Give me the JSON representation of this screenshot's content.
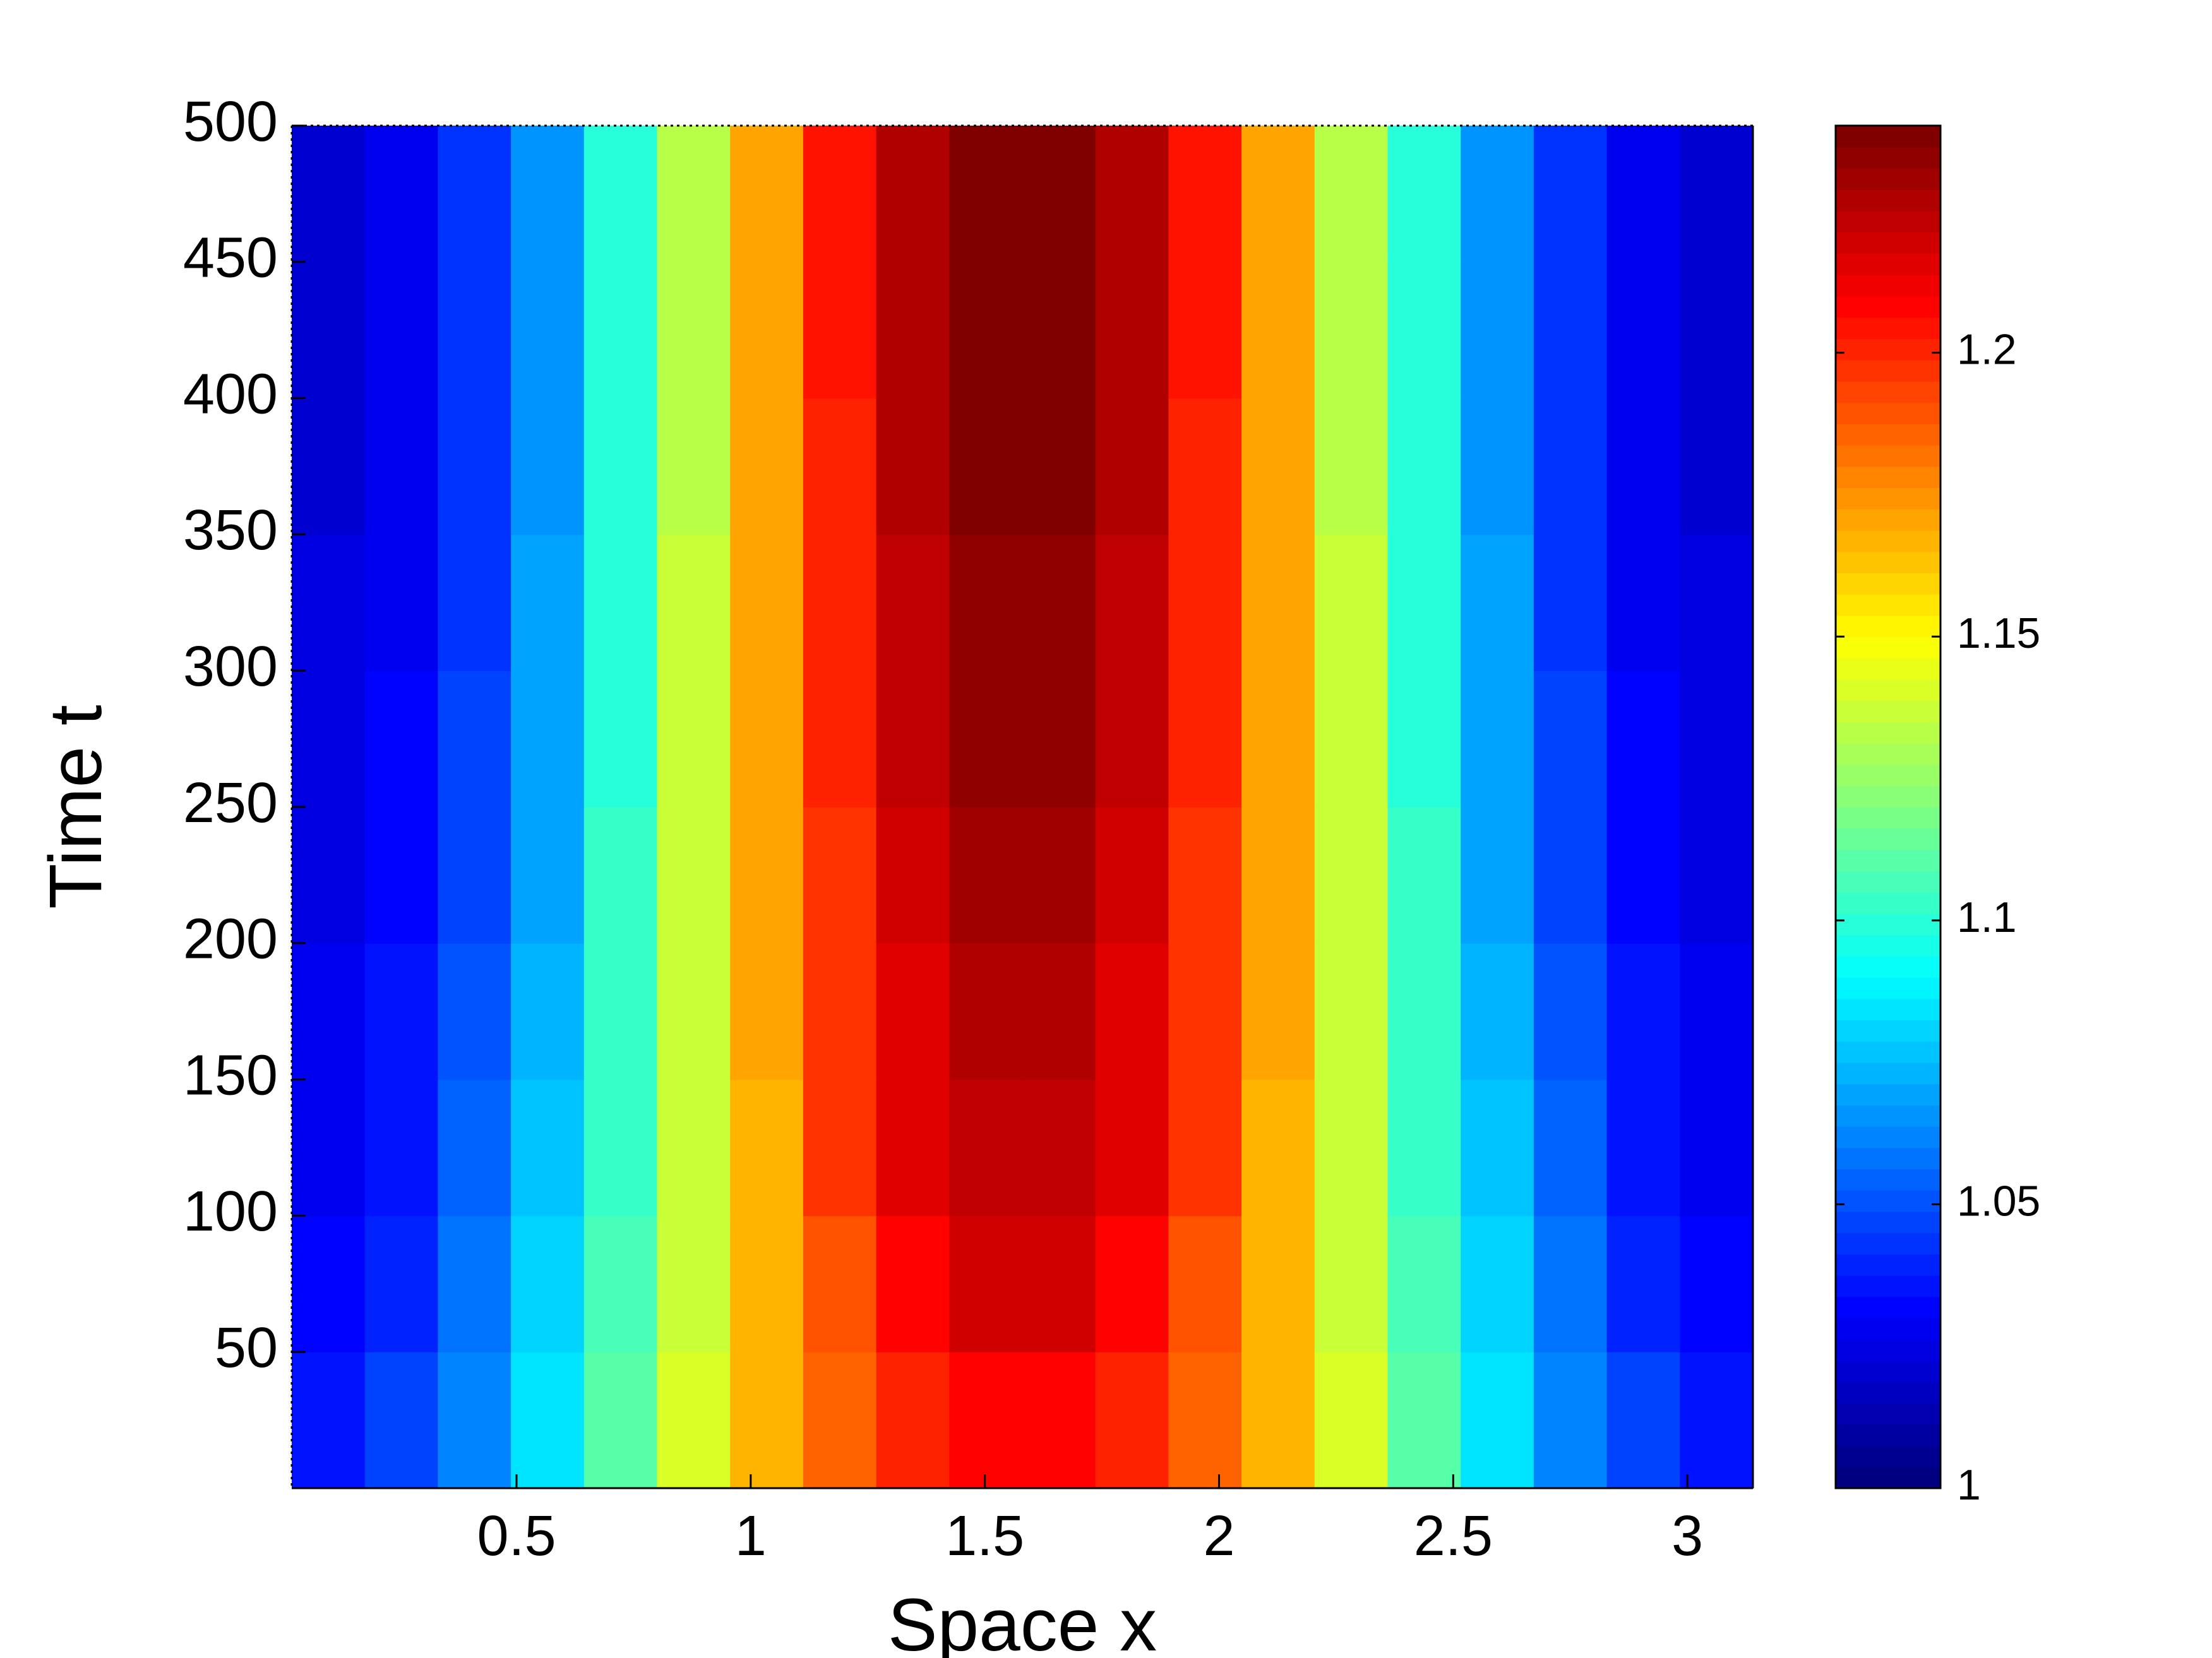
{
  "chart_data": {
    "type": "heatmap",
    "xlabel": "Space x",
    "ylabel": "Time t",
    "colormap": "jet",
    "xlim": [
      0.02,
      3.14
    ],
    "ylim": [
      0,
      500
    ],
    "clim": [
      1,
      1.24
    ],
    "xticks": [
      0.5,
      1,
      1.5,
      2,
      2.5,
      3
    ],
    "yticks": [
      50,
      100,
      150,
      200,
      250,
      300,
      350,
      400,
      450,
      500
    ],
    "cticks": [
      1,
      1.05,
      1.1,
      1.15,
      1.2
    ],
    "x": [
      0.098,
      0.254,
      0.41,
      0.566,
      0.722,
      0.878,
      1.034,
      1.19,
      1.346,
      1.502,
      1.658,
      1.814,
      1.97,
      2.126,
      2.282,
      2.438,
      2.594,
      2.75,
      2.906,
      3.062
    ],
    "y": [
      25,
      75,
      125,
      175,
      225,
      275,
      325,
      375,
      425,
      475
    ],
    "z": [
      [
        1.037,
        1.046,
        1.063,
        1.085,
        1.111,
        1.139,
        1.165,
        1.186,
        1.201,
        1.209,
        1.209,
        1.201,
        1.186,
        1.165,
        1.139,
        1.111,
        1.085,
        1.063,
        1.046,
        1.037
      ],
      [
        1.032,
        1.04,
        1.057,
        1.079,
        1.107,
        1.138,
        1.167,
        1.191,
        1.209,
        1.218,
        1.218,
        1.209,
        1.191,
        1.167,
        1.138,
        1.107,
        1.079,
        1.057,
        1.04,
        1.032
      ],
      [
        1.029,
        1.037,
        1.053,
        1.076,
        1.105,
        1.137,
        1.168,
        1.195,
        1.214,
        1.224,
        1.224,
        1.214,
        1.195,
        1.168,
        1.137,
        1.105,
        1.076,
        1.053,
        1.037,
        1.029
      ],
      [
        1.027,
        1.034,
        1.05,
        1.073,
        1.103,
        1.136,
        1.169,
        1.197,
        1.217,
        1.228,
        1.228,
        1.217,
        1.197,
        1.169,
        1.136,
        1.103,
        1.073,
        1.05,
        1.034,
        1.027
      ],
      [
        1.025,
        1.032,
        1.048,
        1.071,
        1.102,
        1.135,
        1.169,
        1.198,
        1.22,
        1.231,
        1.231,
        1.22,
        1.198,
        1.169,
        1.135,
        1.102,
        1.071,
        1.048,
        1.032,
        1.025
      ],
      [
        1.024,
        1.031,
        1.046,
        1.07,
        1.101,
        1.135,
        1.17,
        1.2,
        1.222,
        1.233,
        1.233,
        1.222,
        1.2,
        1.17,
        1.135,
        1.101,
        1.07,
        1.046,
        1.031,
        1.024
      ],
      [
        1.023,
        1.029,
        1.045,
        1.068,
        1.1,
        1.135,
        1.17,
        1.201,
        1.224,
        1.235,
        1.235,
        1.224,
        1.201,
        1.17,
        1.135,
        1.1,
        1.068,
        1.045,
        1.029,
        1.023
      ],
      [
        1.022,
        1.028,
        1.043,
        1.067,
        1.099,
        1.134,
        1.171,
        1.202,
        1.225,
        1.237,
        1.237,
        1.225,
        1.202,
        1.171,
        1.134,
        1.099,
        1.067,
        1.043,
        1.028,
        1.022
      ],
      [
        1.021,
        1.028,
        1.042,
        1.067,
        1.098,
        1.134,
        1.171,
        1.203,
        1.226,
        1.238,
        1.238,
        1.226,
        1.203,
        1.171,
        1.134,
        1.098,
        1.067,
        1.042,
        1.028,
        1.021
      ],
      [
        1.021,
        1.027,
        1.042,
        1.066,
        1.098,
        1.134,
        1.171,
        1.203,
        1.227,
        1.239,
        1.239,
        1.227,
        1.203,
        1.171,
        1.134,
        1.098,
        1.066,
        1.042,
        1.027,
        1.021
      ]
    ]
  }
}
